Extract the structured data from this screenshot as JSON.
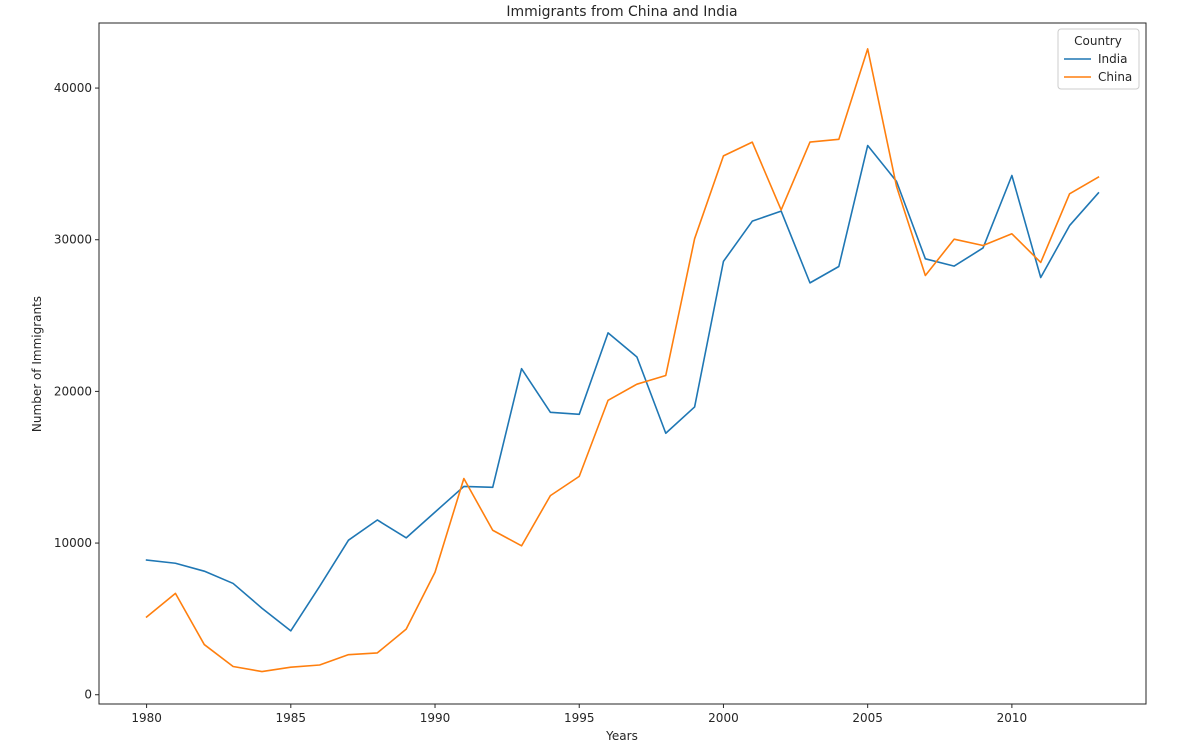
{
  "chart_data": {
    "type": "line",
    "title": "Immigrants from China and India",
    "xlabel": "Years",
    "ylabel": "Number of Immigrants",
    "x": [
      1980,
      1981,
      1982,
      1983,
      1984,
      1985,
      1986,
      1987,
      1988,
      1989,
      1990,
      1991,
      1992,
      1993,
      1994,
      1995,
      1996,
      1997,
      1998,
      1999,
      2000,
      2001,
      2002,
      2003,
      2004,
      2005,
      2006,
      2007,
      2008,
      2009,
      2010,
      2011,
      2012,
      2013
    ],
    "xticks": [
      1980,
      1985,
      1990,
      1995,
      2000,
      2005,
      2010
    ],
    "yticks": [
      0,
      10000,
      20000,
      30000,
      40000
    ],
    "xlim": [
      1978.35,
      2014.65
    ],
    "ylim": [
      -611,
      44290
    ],
    "grid": false,
    "legend": {
      "title": "Country",
      "placement": "top-right"
    },
    "series": [
      {
        "name": "India",
        "color": "#1f77b4",
        "values": [
          8880,
          8670,
          8147,
          7338,
          5704,
          4211,
          7150,
          10189,
          11522,
          10343,
          12041,
          13734,
          13673,
          21496,
          18620,
          18489,
          23859,
          22268,
          17241,
          18974,
          28572,
          31223,
          31889,
          27155,
          28235,
          36210,
          33848,
          28742,
          28261,
          29456,
          34235,
          27509,
          30933,
          33087
        ]
      },
      {
        "name": "China",
        "color": "#ff7f0e",
        "values": [
          5123,
          6682,
          3308,
          1863,
          1527,
          1816,
          1960,
          2643,
          2758,
          4323,
          8076,
          14255,
          10846,
          9817,
          13128,
          14398,
          19415,
          20475,
          21049,
          30069,
          35529,
          36434,
          31961,
          36439,
          36619,
          42584,
          33518,
          27642,
          30037,
          29622,
          30391,
          28502,
          33024,
          34129
        ]
      }
    ]
  }
}
